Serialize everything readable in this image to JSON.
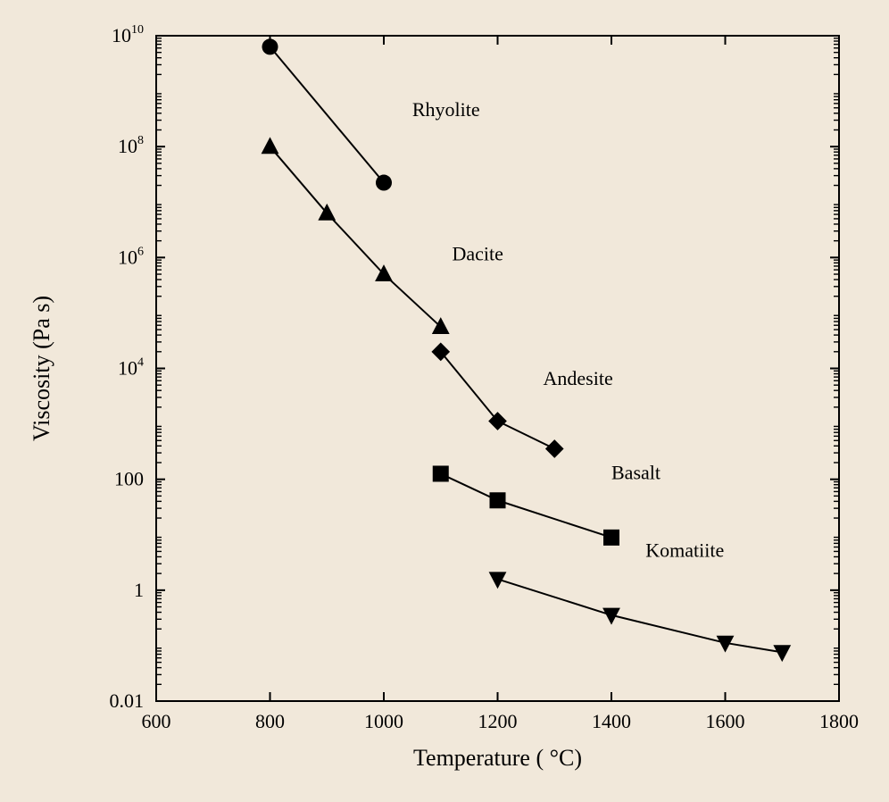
{
  "chart": {
    "type": "line-scatter-logy",
    "background_color": "#f1e8da",
    "plot_background_color": "#f1e8da",
    "axis_color": "#000000",
    "tick_color": "#000000",
    "text_color": "#000000",
    "x_label": "Temperature ( °C)",
    "y_label": "Viscosity (Pa s)",
    "axis_label_fontsize": 26,
    "tick_fontsize": 22,
    "series_label_fontsize": 22,
    "axis_linewidth": 2,
    "series_linewidth": 2,
    "marker_size": 9,
    "x": {
      "min": 600,
      "max": 1800,
      "ticks": [
        600,
        800,
        1000,
        1200,
        1400,
        1600,
        1800
      ]
    },
    "y": {
      "log": true,
      "min_exp": -2,
      "max_exp": 10,
      "major_tick_exps": [
        -2,
        0,
        2,
        4,
        6,
        8,
        10
      ],
      "tick_labels": [
        "0.01",
        "1",
        "100",
        "10^4",
        "10^6",
        "10^8",
        "10^10"
      ]
    },
    "series": [
      {
        "name": "Rhyolite",
        "label": "Rhyolite",
        "marker": "circle",
        "color": "#000000",
        "points": [
          {
            "x": 800,
            "y_exp": 9.8
          },
          {
            "x": 1000,
            "y_exp": 7.35
          }
        ],
        "label_pos": {
          "x": 1050,
          "y_exp": 8.55
        }
      },
      {
        "name": "Dacite",
        "label": "Dacite",
        "marker": "triangle-up",
        "color": "#000000",
        "points": [
          {
            "x": 800,
            "y_exp": 8.0
          },
          {
            "x": 900,
            "y_exp": 6.8
          },
          {
            "x": 1000,
            "y_exp": 5.7
          },
          {
            "x": 1100,
            "y_exp": 4.75
          }
        ],
        "label_pos": {
          "x": 1120,
          "y_exp": 5.95
        }
      },
      {
        "name": "Andesite",
        "label": "Andesite",
        "marker": "diamond",
        "color": "#000000",
        "points": [
          {
            "x": 1100,
            "y_exp": 4.3
          },
          {
            "x": 1200,
            "y_exp": 3.05
          },
          {
            "x": 1300,
            "y_exp": 2.55
          }
        ],
        "label_pos": {
          "x": 1280,
          "y_exp": 3.7
        }
      },
      {
        "name": "Basalt",
        "label": "Basalt",
        "marker": "square",
        "color": "#000000",
        "points": [
          {
            "x": 1100,
            "y_exp": 2.1
          },
          {
            "x": 1200,
            "y_exp": 1.62
          },
          {
            "x": 1400,
            "y_exp": 0.95
          }
        ],
        "label_pos": {
          "x": 1400,
          "y_exp": 2.0
        }
      },
      {
        "name": "Komatiite",
        "label": "Komatiite",
        "marker": "triangle-down",
        "color": "#000000",
        "points": [
          {
            "x": 1200,
            "y_exp": 0.2
          },
          {
            "x": 1400,
            "y_exp": -0.45
          },
          {
            "x": 1600,
            "y_exp": -0.95
          },
          {
            "x": 1700,
            "y_exp": -1.12
          }
        ],
        "label_pos": {
          "x": 1460,
          "y_exp": 0.6
        }
      }
    ]
  }
}
